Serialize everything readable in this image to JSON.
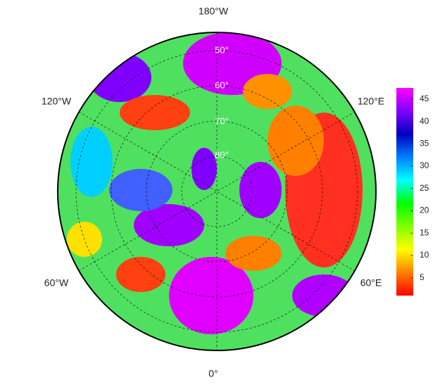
{
  "longitude_labels": [
    "180°W",
    "120°E",
    "60°E",
    "0°",
    "60°W",
    "120°W"
  ],
  "latitude_labels": [
    "50°",
    "60°",
    "70°",
    "80°"
  ],
  "colorbar": {
    "lim": [
      1,
      47.5
    ],
    "ticks": [
      5,
      10,
      15,
      20,
      25,
      30,
      35,
      40,
      45
    ],
    "colors": [
      "#ff0000",
      "#ff8000",
      "#ffff00",
      "#80ff00",
      "#00ff00",
      "#00ffff",
      "#0080ff",
      "#0000c0",
      "#8000ff",
      "#ff00ff"
    ]
  }
}
